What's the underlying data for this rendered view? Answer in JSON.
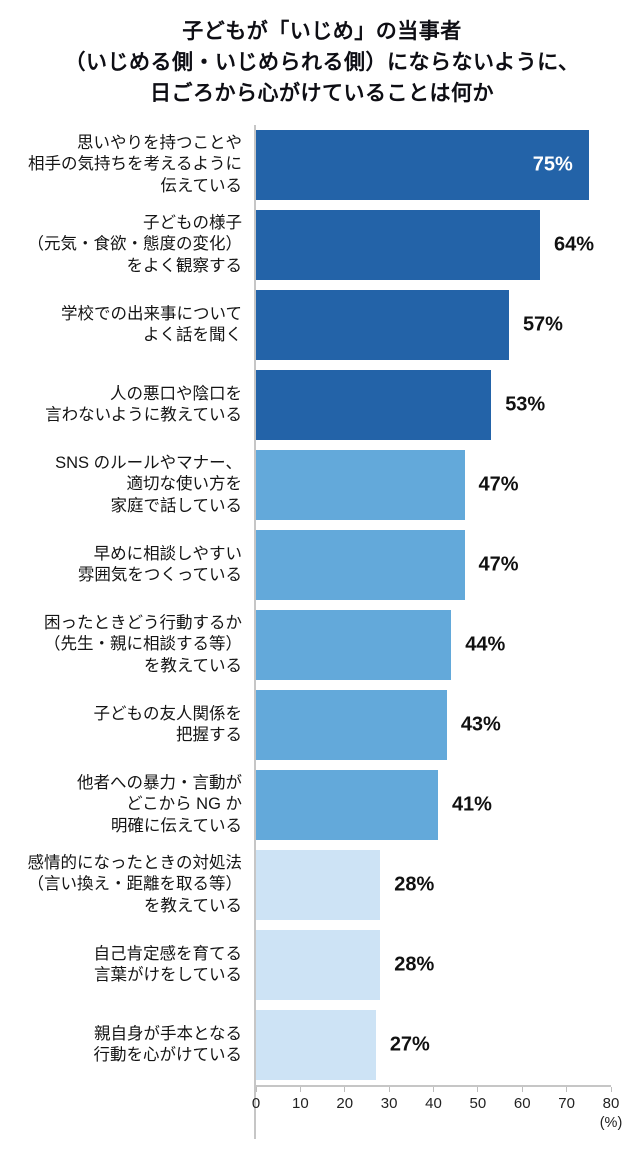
{
  "title": {
    "lines": [
      "子どもが「いじめ」の当事者",
      "（いじめる側・いじめられる側）にならないように、",
      "日ごろから心がけていることは何か"
    ]
  },
  "colors": {
    "dark_blue": "#2363a8",
    "medium_blue": "#63a9da",
    "pale_blue": "#cde3f5",
    "axis_line": "#c6c6c6",
    "value_inside_text": "#ffffff",
    "value_outside_text": "#111111"
  },
  "chart_data": {
    "type": "bar",
    "orientation": "horizontal",
    "title": "子どもが「いじめ」の当事者（いじめる側・いじめられる側）にならないように、日ごろから心がけていることは何か",
    "xlabel": "(%)",
    "ylabel": "",
    "xlim": [
      0,
      80
    ],
    "x_ticks": [
      0,
      10,
      20,
      30,
      40,
      50,
      60,
      70,
      80
    ],
    "x_unit": "(%)",
    "grid": false,
    "legend": false,
    "items": [
      {
        "label_lines": [
          "思いやりを持つことや",
          "相手の気持ちを考えるように",
          "伝えている"
        ],
        "value": 75,
        "value_label": "75%",
        "color": "#2363a8",
        "value_inside": true
      },
      {
        "label_lines": [
          "子どもの様子",
          "（元気・食欲・態度の変化）",
          "をよく観察する"
        ],
        "value": 64,
        "value_label": "64%",
        "color": "#2363a8",
        "value_inside": false
      },
      {
        "label_lines": [
          "学校での出来事について",
          "よく話を聞く"
        ],
        "value": 57,
        "value_label": "57%",
        "color": "#2363a8",
        "value_inside": false
      },
      {
        "label_lines": [
          "人の悪口や陰口を",
          "言わないように教えている"
        ],
        "value": 53,
        "value_label": "53%",
        "color": "#2363a8",
        "value_inside": false
      },
      {
        "label_lines": [
          "SNS のルールやマナー、",
          "適切な使い方を",
          "家庭で話している"
        ],
        "value": 47,
        "value_label": "47%",
        "color": "#63a9da",
        "value_inside": false
      },
      {
        "label_lines": [
          "早めに相談しやすい",
          "雰囲気をつくっている"
        ],
        "value": 47,
        "value_label": "47%",
        "color": "#63a9da",
        "value_inside": false
      },
      {
        "label_lines": [
          "困ったときどう行動するか",
          "（先生・親に相談する等）",
          "を教えている"
        ],
        "value": 44,
        "value_label": "44%",
        "color": "#63a9da",
        "value_inside": false
      },
      {
        "label_lines": [
          "子どもの友人関係を",
          "把握する"
        ],
        "value": 43,
        "value_label": "43%",
        "color": "#63a9da",
        "value_inside": false
      },
      {
        "label_lines": [
          "他者への暴力・言動が",
          "どこから NG か",
          "明確に伝えている"
        ],
        "value": 41,
        "value_label": "41%",
        "color": "#63a9da",
        "value_inside": false
      },
      {
        "label_lines": [
          "感情的になったときの対処法",
          "（言い換え・距離を取る等）",
          "を教えている"
        ],
        "value": 28,
        "value_label": "28%",
        "color": "#cde3f5",
        "value_inside": false
      },
      {
        "label_lines": [
          "自己肯定感を育てる",
          "言葉がけをしている"
        ],
        "value": 28,
        "value_label": "28%",
        "color": "#cde3f5",
        "value_inside": false
      },
      {
        "label_lines": [
          "親自身が手本となる",
          "行動を心がけている"
        ],
        "value": 27,
        "value_label": "27%",
        "color": "#cde3f5",
        "value_inside": false
      }
    ]
  }
}
